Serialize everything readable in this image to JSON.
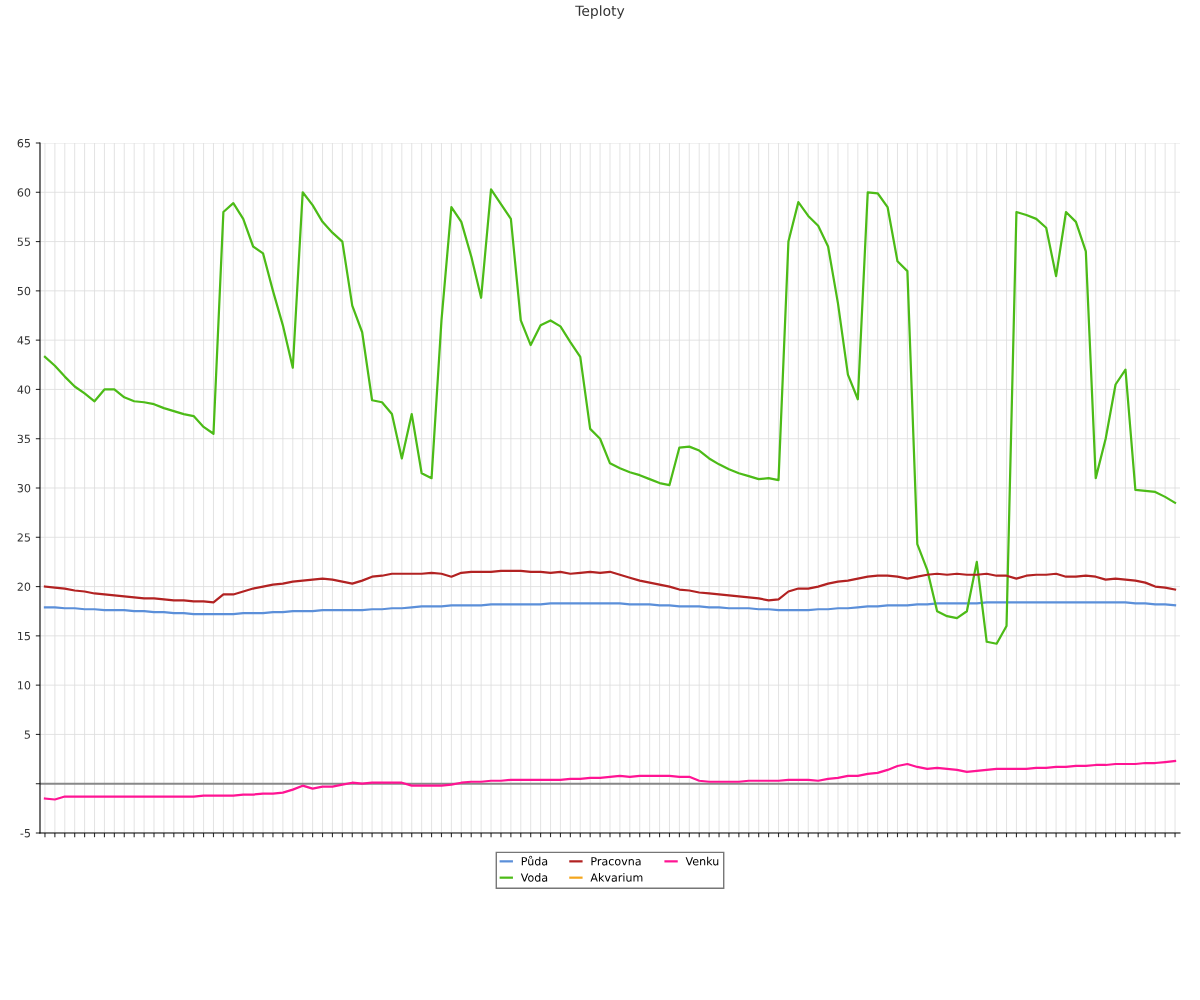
{
  "chart_data": {
    "type": "line",
    "title": "Teploty",
    "categories": [
      null,
      null,
      null,
      null,
      null,
      null,
      null,
      null,
      null,
      null,
      null,
      null,
      null,
      null,
      null,
      null,
      null,
      null,
      null,
      null,
      null,
      null,
      null,
      null,
      null,
      null,
      null,
      null,
      null,
      null,
      null,
      null,
      null,
      null,
      null,
      null,
      null,
      null,
      null,
      null,
      null,
      null,
      null,
      null,
      null,
      null,
      null,
      null,
      null,
      null,
      null,
      null,
      null,
      null,
      null,
      null,
      null,
      null,
      null,
      null,
      null,
      null,
      null,
      null,
      null,
      null,
      null,
      null,
      null,
      null,
      null,
      null,
      null,
      null,
      null,
      null,
      null,
      null,
      null,
      null,
      null,
      null,
      null,
      null,
      null,
      null,
      null,
      null,
      null,
      null,
      null,
      null,
      null,
      null,
      null,
      null,
      null,
      null,
      null,
      null,
      null,
      null,
      null,
      null,
      null,
      null,
      null,
      null,
      null,
      null,
      null,
      null,
      null,
      null,
      null
    ],
    "series": [
      {
        "name": "Půda",
        "color": "#5b8fd9",
        "values": [
          17.9,
          17.9,
          17.8,
          17.8,
          17.7,
          17.7,
          17.6,
          17.6,
          17.6,
          17.5,
          17.5,
          17.4,
          17.4,
          17.3,
          17.3,
          17.2,
          17.2,
          17.2,
          17.2,
          17.2,
          17.3,
          17.3,
          17.3,
          17.4,
          17.4,
          17.5,
          17.5,
          17.5,
          17.6,
          17.6,
          17.6,
          17.6,
          17.6,
          17.7,
          17.7,
          17.8,
          17.8,
          17.9,
          18.0,
          18.0,
          18.0,
          18.1,
          18.1,
          18.1,
          18.1,
          18.2,
          18.2,
          18.2,
          18.2,
          18.2,
          18.2,
          18.3,
          18.3,
          18.3,
          18.3,
          18.3,
          18.3,
          18.3,
          18.3,
          18.2,
          18.2,
          18.2,
          18.1,
          18.1,
          18.0,
          18.0,
          18.0,
          17.9,
          17.9,
          17.8,
          17.8,
          17.8,
          17.7,
          17.7,
          17.6,
          17.6,
          17.6,
          17.6,
          17.7,
          17.7,
          17.8,
          17.8,
          17.9,
          18.0,
          18.0,
          18.1,
          18.1,
          18.1,
          18.2,
          18.2,
          18.3,
          18.3,
          18.3,
          18.3,
          18.3,
          18.4,
          18.4,
          18.4,
          18.4,
          18.4,
          18.4,
          18.4,
          18.4,
          18.4,
          18.4,
          18.4,
          18.4,
          18.4,
          18.4,
          18.4,
          18.3,
          18.3,
          18.2,
          18.2,
          18.1
        ]
      },
      {
        "name": "Voda",
        "color": "#4cbb17",
        "values": [
          43.3,
          42.4,
          41.3,
          40.3,
          39.6,
          38.8,
          40.0,
          40.0,
          39.2,
          38.8,
          38.7,
          38.5,
          38.1,
          37.8,
          37.5,
          37.3,
          36.2,
          35.5,
          58.0,
          58.9,
          57.3,
          54.5,
          53.8,
          50.0,
          46.5,
          42.2,
          60.0,
          58.7,
          57.0,
          55.9,
          55.0,
          48.5,
          45.8,
          38.9,
          38.7,
          37.5,
          33.0,
          37.5,
          31.5,
          31.0,
          47.0,
          58.5,
          57.0,
          53.5,
          49.3,
          60.3,
          58.8,
          57.3,
          47.0,
          44.5,
          46.5,
          47.0,
          46.4,
          44.8,
          43.3,
          36.0,
          35.0,
          32.5,
          32.0,
          31.6,
          31.3,
          30.9,
          30.5,
          30.3,
          34.1,
          34.2,
          33.8,
          33.0,
          32.4,
          31.9,
          31.5,
          31.2,
          30.9,
          31.0,
          30.8,
          55.0,
          59.0,
          57.6,
          56.6,
          54.5,
          48.7,
          41.5,
          39.0,
          60.0,
          59.9,
          58.5,
          53.0,
          52.0,
          24.3,
          21.7,
          17.5,
          17.0,
          16.8,
          17.5,
          22.5,
          14.4,
          14.2,
          16.0,
          58.0,
          57.7,
          57.3,
          56.4,
          51.5,
          58.0,
          57.0,
          54.0,
          31.0,
          35.0,
          40.5,
          42.0,
          29.8,
          29.7,
          29.6,
          29.1,
          28.5
        ]
      },
      {
        "name": "Pracovna",
        "color": "#b22222",
        "values": [
          20.0,
          19.9,
          19.8,
          19.6,
          19.5,
          19.3,
          19.2,
          19.1,
          19.0,
          18.9,
          18.8,
          18.8,
          18.7,
          18.6,
          18.6,
          18.5,
          18.5,
          18.4,
          19.2,
          19.2,
          19.5,
          19.8,
          20.0,
          20.2,
          20.3,
          20.5,
          20.6,
          20.7,
          20.8,
          20.7,
          20.5,
          20.3,
          20.6,
          21.0,
          21.1,
          21.3,
          21.3,
          21.3,
          21.3,
          21.4,
          21.3,
          21.0,
          21.4,
          21.5,
          21.5,
          21.5,
          21.6,
          21.6,
          21.6,
          21.5,
          21.5,
          21.4,
          21.5,
          21.3,
          21.4,
          21.5,
          21.4,
          21.5,
          21.2,
          20.9,
          20.6,
          20.4,
          20.2,
          20.0,
          19.7,
          19.6,
          19.4,
          19.3,
          19.2,
          19.1,
          19.0,
          18.9,
          18.8,
          18.6,
          18.7,
          19.5,
          19.8,
          19.8,
          20.0,
          20.3,
          20.5,
          20.6,
          20.8,
          21.0,
          21.1,
          21.1,
          21.0,
          20.8,
          21.0,
          21.2,
          21.3,
          21.2,
          21.3,
          21.2,
          21.2,
          21.3,
          21.1,
          21.1,
          20.8,
          21.1,
          21.2,
          21.2,
          21.3,
          21.0,
          21.0,
          21.1,
          21.0,
          20.7,
          20.8,
          20.7,
          20.6,
          20.4,
          20.0,
          19.9,
          19.7
        ]
      },
      {
        "name": "Akvarium",
        "color": "#f4a61d",
        "values": [
          null,
          null,
          null,
          null,
          null,
          null,
          null,
          null,
          null,
          null,
          null,
          null,
          null,
          null,
          null,
          null,
          null,
          null,
          null,
          null,
          null,
          null,
          null,
          null,
          null,
          null,
          null,
          null,
          null,
          null,
          null,
          null,
          null,
          null,
          null,
          null,
          null,
          null,
          null,
          null,
          null,
          null,
          null,
          null,
          null,
          null,
          null,
          null,
          null,
          null,
          null,
          null,
          null,
          null,
          null,
          null,
          null,
          null,
          null,
          null,
          null,
          null,
          null,
          null,
          null,
          null,
          null,
          null,
          null,
          null,
          null,
          null,
          null,
          null,
          null,
          null,
          null,
          null,
          null,
          null,
          null,
          null,
          null,
          null,
          null,
          null,
          null,
          null,
          null,
          null,
          null,
          null,
          null,
          null,
          null,
          null,
          null,
          null,
          null,
          null,
          null,
          null,
          null,
          null,
          null,
          null,
          null,
          null,
          null,
          null,
          null,
          null,
          null,
          null,
          null
        ]
      },
      {
        "name": "Venku",
        "color": "#ff1493",
        "values": [
          -1.5,
          -1.6,
          -1.3,
          -1.3,
          -1.3,
          -1.3,
          -1.3,
          -1.3,
          -1.3,
          -1.3,
          -1.3,
          -1.3,
          -1.3,
          -1.3,
          -1.3,
          -1.3,
          -1.2,
          -1.2,
          -1.2,
          -1.2,
          -1.1,
          -1.1,
          -1.0,
          -1.0,
          -0.9,
          -0.6,
          -0.2,
          -0.5,
          -0.3,
          -0.3,
          -0.1,
          0.1,
          0.0,
          0.1,
          0.1,
          0.1,
          0.1,
          -0.2,
          -0.2,
          -0.2,
          -0.2,
          -0.1,
          0.1,
          0.2,
          0.2,
          0.3,
          0.3,
          0.4,
          0.4,
          0.4,
          0.4,
          0.4,
          0.4,
          0.5,
          0.5,
          0.6,
          0.6,
          0.7,
          0.8,
          0.7,
          0.8,
          0.8,
          0.8,
          0.8,
          0.7,
          0.7,
          0.3,
          0.2,
          0.2,
          0.2,
          0.2,
          0.3,
          0.3,
          0.3,
          0.3,
          0.4,
          0.4,
          0.4,
          0.3,
          0.5,
          0.6,
          0.8,
          0.8,
          1.0,
          1.1,
          1.4,
          1.8,
          2.0,
          1.7,
          1.5,
          1.6,
          1.5,
          1.4,
          1.2,
          1.3,
          1.4,
          1.5,
          1.5,
          1.5,
          1.5,
          1.6,
          1.6,
          1.7,
          1.7,
          1.8,
          1.8,
          1.9,
          1.9,
          2.0,
          2.0,
          2.0,
          2.1,
          2.1,
          2.2,
          2.3
        ]
      }
    ],
    "ylim": [
      -5,
      65
    ],
    "yticks": [
      -5,
      {
        "value": 0,
        "label": null
      },
      5,
      10,
      15,
      20,
      25,
      30,
      35,
      40,
      45,
      50,
      55,
      60,
      65
    ],
    "grid": true,
    "legend": "bottom",
    "marker": "none",
    "line_style": "solid"
  }
}
